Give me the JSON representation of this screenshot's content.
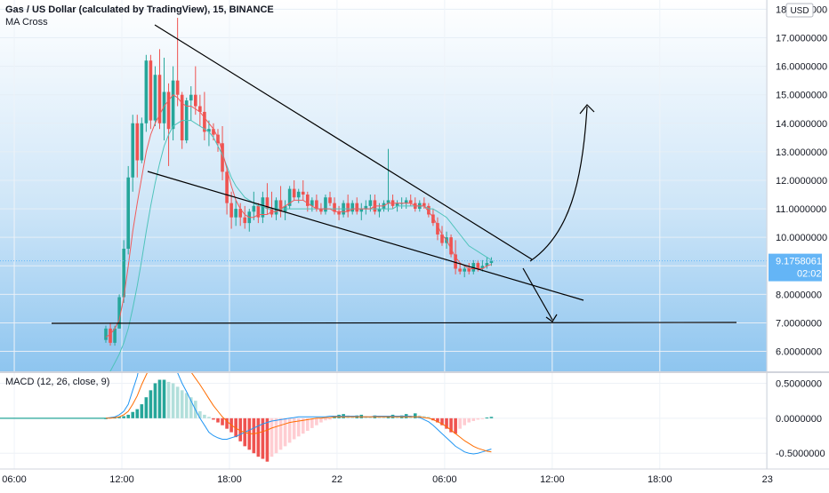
{
  "header": {
    "title": "Gas / US Dollar (calculated by TradingView), 15, BINANCE",
    "indicator": "MA Cross",
    "macd_label": "MACD (12, 26, close, 9)",
    "currency": "USD"
  },
  "price_tag": {
    "value": "9.1758061",
    "countdown": "02:02"
  },
  "colors": {
    "background_top": "#ffffff",
    "background_bottom": "#8ec5ef",
    "up": "#26a69a",
    "down": "#ef5350",
    "ma_fast": "#f05b5b",
    "ma_slow": "#4fc3bb",
    "drawing": "#000000",
    "price_tag": "#64b5f6",
    "hist_up_light": "#b2dfdb",
    "hist_down_light": "#ffcdd2",
    "macd_line": "#2196f3",
    "signal_line": "#ff6d00"
  },
  "chart_data": [
    {
      "type": "candlestick",
      "title": "Gas / US Dollar (calculated by TradingView), 15, BINANCE",
      "ylabel": "USD",
      "ylim": [
        5.3,
        18.2
      ],
      "y_ticks": [
        "18.0000000",
        "17.0000000",
        "16.0000000",
        "15.0000000",
        "14.0000000",
        "13.0000000",
        "12.0000000",
        "11.0000000",
        "10.0000000",
        "9.0000000",
        "8.0000000",
        "7.0000000",
        "6.0000000"
      ],
      "x_tick_labels": [
        "06:00",
        "12:00",
        "18:00",
        "22",
        "06:00",
        "12:00",
        "18:00",
        "23"
      ],
      "x_tick_bars": [
        -24,
        0,
        24,
        48,
        72,
        96,
        120,
        144
      ],
      "last_price": 9.1758061,
      "candles": [
        [
          6.4,
          6.9,
          6.3,
          6.8
        ],
        [
          6.8,
          7.0,
          6.2,
          6.3
        ],
        [
          6.3,
          6.9,
          6.2,
          6.8
        ],
        [
          6.8,
          8.0,
          6.8,
          7.9
        ],
        [
          7.9,
          9.9,
          7.7,
          9.6
        ],
        [
          9.6,
          12.5,
          9.4,
          12.1
        ],
        [
          12.1,
          14.3,
          11.6,
          14.0
        ],
        [
          14.0,
          14.3,
          12.1,
          12.7
        ],
        [
          12.7,
          14.2,
          12.6,
          14.0
        ],
        [
          14.0,
          16.4,
          13.7,
          16.2
        ],
        [
          16.2,
          16.4,
          13.8,
          14.1
        ],
        [
          14.1,
          16.0,
          13.9,
          15.7
        ],
        [
          15.7,
          16.6,
          13.8,
          14.0
        ],
        [
          14.0,
          16.3,
          13.4,
          15.1
        ],
        [
          15.1,
          15.4,
          12.5,
          13.8
        ],
        [
          13.8,
          16.0,
          13.4,
          15.5
        ],
        [
          15.5,
          17.7,
          14.6,
          15.0
        ],
        [
          15.0,
          15.1,
          13.1,
          13.4
        ],
        [
          13.4,
          14.9,
          13.3,
          14.8
        ],
        [
          14.8,
          15.3,
          14.1,
          15.0
        ],
        [
          15.0,
          16.0,
          14.3,
          14.6
        ],
        [
          14.6,
          15.0,
          13.9,
          14.4
        ],
        [
          14.4,
          15.1,
          13.4,
          13.7
        ],
        [
          13.7,
          14.1,
          13.2,
          13.8
        ],
        [
          13.8,
          14.0,
          13.4,
          13.6
        ],
        [
          13.6,
          13.8,
          13.0,
          13.3
        ],
        [
          13.3,
          13.9,
          12.0,
          12.3
        ],
        [
          12.3,
          12.5,
          10.8,
          11.2
        ],
        [
          11.2,
          11.6,
          10.3,
          10.7
        ],
        [
          10.7,
          11.3,
          10.4,
          11.0
        ],
        [
          11.0,
          11.2,
          10.4,
          10.7
        ],
        [
          10.7,
          11.1,
          10.3,
          10.5
        ],
        [
          10.5,
          11.0,
          10.2,
          10.9
        ],
        [
          10.9,
          11.6,
          10.6,
          11.1
        ],
        [
          11.1,
          11.2,
          10.5,
          10.7
        ],
        [
          10.7,
          11.6,
          10.5,
          11.4
        ],
        [
          11.4,
          11.9,
          10.8,
          11.0
        ],
        [
          11.0,
          11.6,
          10.7,
          10.8
        ],
        [
          10.8,
          11.4,
          10.6,
          11.3
        ],
        [
          11.3,
          11.8,
          10.7,
          10.9
        ],
        [
          10.9,
          11.3,
          10.6,
          11.1
        ],
        [
          11.1,
          11.8,
          11.0,
          11.7
        ],
        [
          11.7,
          12.0,
          11.3,
          11.4
        ],
        [
          11.4,
          11.7,
          11.2,
          11.6
        ],
        [
          11.6,
          12.0,
          11.3,
          11.5
        ],
        [
          11.5,
          11.6,
          10.9,
          11.1
        ],
        [
          11.1,
          11.4,
          10.9,
          11.3
        ],
        [
          11.3,
          11.5,
          10.9,
          11.0
        ],
        [
          11.0,
          11.2,
          10.8,
          10.9
        ],
        [
          10.9,
          11.5,
          10.8,
          11.4
        ],
        [
          11.4,
          11.6,
          11.1,
          11.2
        ],
        [
          11.2,
          11.4,
          10.8,
          10.9
        ],
        [
          10.9,
          11.1,
          10.6,
          10.8
        ],
        [
          10.8,
          11.3,
          10.7,
          11.2
        ],
        [
          11.2,
          11.5,
          10.7,
          10.9
        ],
        [
          10.9,
          11.3,
          10.8,
          11.2
        ],
        [
          11.2,
          11.4,
          10.8,
          10.9
        ],
        [
          10.9,
          11.2,
          10.6,
          11.0
        ],
        [
          11.0,
          11.3,
          10.8,
          11.1
        ],
        [
          11.1,
          11.5,
          10.9,
          11.3
        ],
        [
          11.3,
          11.5,
          10.8,
          10.9
        ],
        [
          10.9,
          11.2,
          10.7,
          11.0
        ],
        [
          11.0,
          11.3,
          10.9,
          11.2
        ],
        [
          11.2,
          13.1,
          10.9,
          11.3
        ],
        [
          11.3,
          11.5,
          11.0,
          11.1
        ],
        [
          11.1,
          11.3,
          10.9,
          11.2
        ],
        [
          11.2,
          11.4,
          11.0,
          11.2
        ],
        [
          11.2,
          11.4,
          11.0,
          11.3
        ],
        [
          11.3,
          11.5,
          11.1,
          11.2
        ],
        [
          11.2,
          11.4,
          10.9,
          11.0
        ],
        [
          11.0,
          11.3,
          10.9,
          11.2
        ],
        [
          11.2,
          11.4,
          11.0,
          11.1
        ],
        [
          11.1,
          11.2,
          10.7,
          10.8
        ],
        [
          10.8,
          11.0,
          10.4,
          10.5
        ],
        [
          10.5,
          10.7,
          9.9,
          10.1
        ],
        [
          10.1,
          10.4,
          9.7,
          9.8
        ],
        [
          9.8,
          10.2,
          9.6,
          10.0
        ],
        [
          10.0,
          10.1,
          9.3,
          9.4
        ],
        [
          9.4,
          9.9,
          8.7,
          8.9
        ],
        [
          8.9,
          9.1,
          8.7,
          8.8
        ],
        [
          8.8,
          9.0,
          8.6,
          8.9
        ],
        [
          8.9,
          9.1,
          8.7,
          8.8
        ],
        [
          8.8,
          9.2,
          8.7,
          9.1
        ],
        [
          9.1,
          9.2,
          8.8,
          8.9
        ],
        [
          8.9,
          9.2,
          8.8,
          9.0
        ],
        [
          9.0,
          9.3,
          8.9,
          9.1
        ],
        [
          9.1,
          9.3,
          9.0,
          9.18
        ]
      ],
      "ma_fast": [
        6.5,
        6.6,
        6.8,
        7.1,
        7.9,
        9.0,
        10.2,
        11.2,
        12.1,
        13.0,
        13.6,
        14.0,
        14.3,
        14.6,
        14.8,
        15.0,
        14.9,
        14.7,
        14.6,
        14.6,
        14.5,
        14.4,
        14.2,
        14.0,
        13.8,
        13.5,
        13.0,
        12.4,
        11.8,
        11.3,
        11.0,
        10.8,
        10.7,
        10.7,
        10.8,
        10.8,
        10.8,
        10.9,
        10.9,
        11.0,
        11.1,
        11.2,
        11.3,
        11.3,
        11.3,
        11.2,
        11.1,
        11.0,
        11.0,
        11.0,
        11.0,
        10.9,
        10.9,
        10.9,
        10.9,
        11.0,
        11.0,
        11.0,
        11.0,
        11.0,
        11.1,
        11.1,
        11.1,
        11.2,
        11.2,
        11.2,
        11.2,
        11.2,
        11.2,
        11.1,
        11.1,
        11.1,
        10.9,
        10.7,
        10.4,
        10.1,
        9.9,
        9.6,
        9.3,
        9.1,
        9.0,
        8.9,
        8.9,
        8.9,
        8.9,
        9.0,
        9.05
      ],
      "ma_slow": [
        5.0,
        5.3,
        5.6,
        5.9,
        6.3,
        6.8,
        7.5,
        8.3,
        9.2,
        10.2,
        11.1,
        11.9,
        12.6,
        13.2,
        13.6,
        13.9,
        14.0,
        14.1,
        14.1,
        14.1,
        14.0,
        13.9,
        13.8,
        13.7,
        13.5,
        13.2,
        12.9,
        12.5,
        12.1,
        11.8,
        11.6,
        11.4,
        11.3,
        11.2,
        11.1,
        11.1,
        11.0,
        11.0,
        11.0,
        11.0,
        11.0,
        11.0,
        11.0,
        11.0,
        11.0,
        11.0,
        11.0,
        11.0,
        11.0,
        11.0,
        11.0,
        11.0,
        11.0,
        11.0,
        11.0,
        11.0,
        11.0,
        11.0,
        11.0,
        11.0,
        11.0,
        11.0,
        11.0,
        11.0,
        11.0,
        11.1,
        11.1,
        11.1,
        11.1,
        11.1,
        11.1,
        11.1,
        11.0,
        11.0,
        10.9,
        10.8,
        10.7,
        10.5,
        10.3,
        10.1,
        9.9,
        9.7,
        9.6,
        9.5,
        9.4,
        9.3,
        9.2
      ]
    },
    {
      "type": "bar",
      "title": "MACD (12, 26, close, 9)",
      "ylim": [
        -0.7,
        0.62
      ],
      "y_ticks": [
        "0.5000000",
        "0.0000000",
        "-0.5000000"
      ],
      "histogram": [
        0,
        0.01,
        0.01,
        0.02,
        0.03,
        0.05,
        0.09,
        0.13,
        0.2,
        0.3,
        0.4,
        0.5,
        0.55,
        0.55,
        0.52,
        0.5,
        0.45,
        0.4,
        0.36,
        0.3,
        0.25,
        0.1,
        0.05,
        0.02,
        -0.02,
        -0.06,
        -0.1,
        -0.15,
        -0.2,
        -0.27,
        -0.33,
        -0.4,
        -0.45,
        -0.5,
        -0.55,
        -0.58,
        -0.62,
        -0.55,
        -0.5,
        -0.45,
        -0.4,
        -0.35,
        -0.3,
        -0.26,
        -0.22,
        -0.18,
        -0.14,
        -0.1,
        -0.06,
        -0.03,
        -0.02,
        0.02,
        0.05,
        0.06,
        0.04,
        0.03,
        0.04,
        0.05,
        0.03,
        0.02,
        0.04,
        0.03,
        0.02,
        0.03,
        0.05,
        0.02,
        0.04,
        0.06,
        0.03,
        0.07,
        0.04,
        0.03,
        0.02,
        -0.03,
        -0.06,
        -0.1,
        -0.15,
        -0.2,
        -0.22,
        -0.15,
        -0.1,
        -0.06,
        -0.04,
        -0.02,
        -0.01,
        0.01,
        0.02
      ],
      "macd_line": [
        0,
        0.01,
        0.02,
        0.05,
        0.1,
        0.2,
        0.4,
        0.6,
        0.9,
        1.1,
        1.25,
        1.3,
        1.25,
        1.1,
        0.95,
        0.8,
        0.65,
        0.5,
        0.38,
        0.25,
        0.12,
        0.0,
        -0.1,
        -0.2,
        -0.25,
        -0.28,
        -0.3,
        -0.3,
        -0.28,
        -0.26,
        -0.23,
        -0.2,
        -0.17,
        -0.14,
        -0.11,
        -0.08,
        -0.06,
        -0.04,
        -0.03,
        -0.02,
        -0.01,
        0.0,
        0.01,
        0.02,
        0.02,
        0.02,
        0.02,
        0.02,
        0.02,
        0.02,
        0.03,
        0.03,
        0.03,
        0.03,
        0.03,
        0.03,
        0.03,
        0.02,
        0.02,
        0.02,
        0.03,
        0.03,
        0.03,
        0.03,
        0.03,
        0.03,
        0.03,
        0.03,
        0.03,
        0.02,
        0.01,
        -0.02,
        -0.05,
        -0.1,
        -0.16,
        -0.22,
        -0.28,
        -0.34,
        -0.4,
        -0.44,
        -0.48,
        -0.5,
        -0.51,
        -0.5,
        -0.48,
        -0.46,
        -0.44
      ],
      "signal_line": [
        0,
        0.0,
        0.01,
        0.02,
        0.05,
        0.1,
        0.2,
        0.32,
        0.48,
        0.62,
        0.75,
        0.85,
        0.9,
        0.93,
        0.93,
        0.9,
        0.86,
        0.8,
        0.74,
        0.66,
        0.57,
        0.48,
        0.38,
        0.28,
        0.18,
        0.1,
        0.02,
        -0.04,
        -0.1,
        -0.14,
        -0.18,
        -0.2,
        -0.22,
        -0.22,
        -0.21,
        -0.19,
        -0.17,
        -0.14,
        -0.12,
        -0.1,
        -0.08,
        -0.06,
        -0.05,
        -0.04,
        -0.03,
        -0.02,
        -0.01,
        0.0,
        0.0,
        0.01,
        0.01,
        0.02,
        0.02,
        0.02,
        0.02,
        0.02,
        0.02,
        0.02,
        0.02,
        0.02,
        0.02,
        0.02,
        0.02,
        0.02,
        0.02,
        0.02,
        0.02,
        0.02,
        0.02,
        0.02,
        0.02,
        0.01,
        0.0,
        -0.02,
        -0.05,
        -0.08,
        -0.12,
        -0.17,
        -0.22,
        -0.27,
        -0.32,
        -0.36,
        -0.4,
        -0.43,
        -0.45,
        -0.47,
        -0.48
      ]
    }
  ]
}
